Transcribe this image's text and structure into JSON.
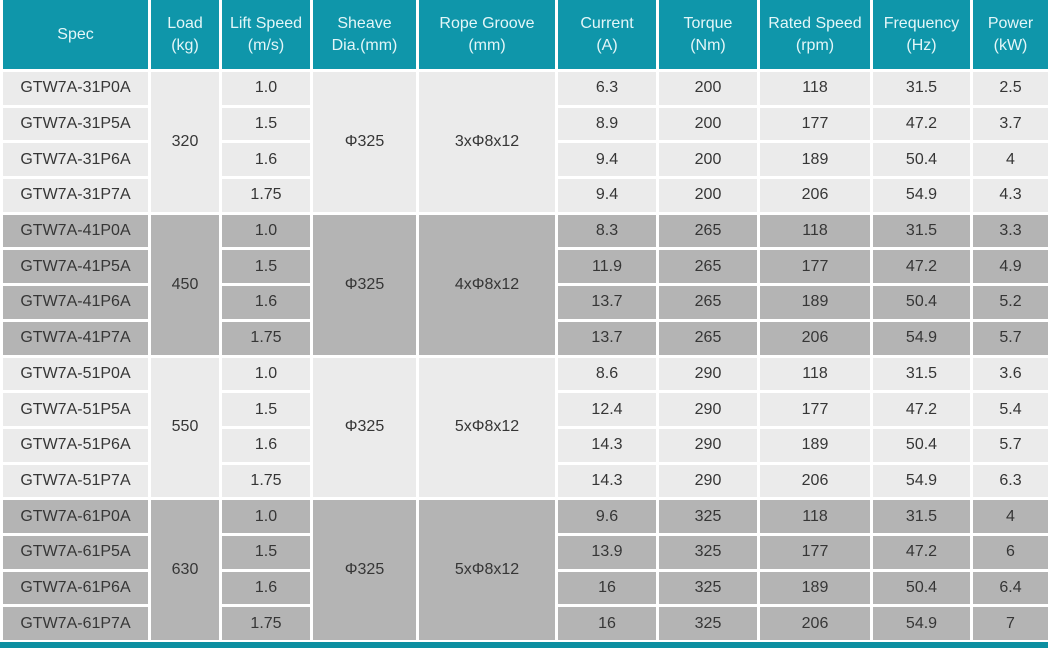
{
  "colors": {
    "header_bg": "#0F96AA",
    "header_text": "#E3F6F8",
    "row_light_bg": "#EBEBEB",
    "row_dark_bg": "#B4B4B4",
    "body_text": "#363636",
    "gap_bg": "#FFFFFF",
    "accent_bar": "#0C8FA1"
  },
  "table": {
    "columns": [
      {
        "id": "spec",
        "label": "Spec",
        "unit": ""
      },
      {
        "id": "load",
        "label": "Load",
        "unit": "(kg)"
      },
      {
        "id": "lift-speed",
        "label": "Lift Speed",
        "unit": "(m/s)"
      },
      {
        "id": "sheave-dia",
        "label": "Sheave",
        "unit": "Dia.(mm)"
      },
      {
        "id": "rope-groove",
        "label": "Rope Groove",
        "unit": "(mm)"
      },
      {
        "id": "current",
        "label": "Current",
        "unit": "(A)"
      },
      {
        "id": "torque",
        "label": "Torque",
        "unit": "(Nm)"
      },
      {
        "id": "rated-speed",
        "label": "Rated Speed",
        "unit": "(rpm)"
      },
      {
        "id": "frequency",
        "label": "Frequency",
        "unit": "(Hz)"
      },
      {
        "id": "power",
        "label": "Power",
        "unit": "(kW)"
      }
    ],
    "groups": [
      {
        "load": "320",
        "sheave_dia": "Φ325",
        "rope_groove": "3xΦ8x12",
        "rows": [
          {
            "spec": "GTW7A-31P0A",
            "lift_speed": "1.0",
            "current": "6.3",
            "torque": "200",
            "rated_speed": "118",
            "frequency": "31.5",
            "power": "2.5"
          },
          {
            "spec": "GTW7A-31P5A",
            "lift_speed": "1.5",
            "current": "8.9",
            "torque": "200",
            "rated_speed": "177",
            "frequency": "47.2",
            "power": "3.7"
          },
          {
            "spec": "GTW7A-31P6A",
            "lift_speed": "1.6",
            "current": "9.4",
            "torque": "200",
            "rated_speed": "189",
            "frequency": "50.4",
            "power": "4"
          },
          {
            "spec": "GTW7A-31P7A",
            "lift_speed": "1.75",
            "current": "9.4",
            "torque": "200",
            "rated_speed": "206",
            "frequency": "54.9",
            "power": "4.3"
          }
        ]
      },
      {
        "load": "450",
        "sheave_dia": "Φ325",
        "rope_groove": "4xΦ8x12",
        "rows": [
          {
            "spec": "GTW7A-41P0A",
            "lift_speed": "1.0",
            "current": "8.3",
            "torque": "265",
            "rated_speed": "118",
            "frequency": "31.5",
            "power": "3.3"
          },
          {
            "spec": "GTW7A-41P5A",
            "lift_speed": "1.5",
            "current": "11.9",
            "torque": "265",
            "rated_speed": "177",
            "frequency": "47.2",
            "power": "4.9"
          },
          {
            "spec": "GTW7A-41P6A",
            "lift_speed": "1.6",
            "current": "13.7",
            "torque": "265",
            "rated_speed": "189",
            "frequency": "50.4",
            "power": "5.2"
          },
          {
            "spec": "GTW7A-41P7A",
            "lift_speed": "1.75",
            "current": "13.7",
            "torque": "265",
            "rated_speed": "206",
            "frequency": "54.9",
            "power": "5.7"
          }
        ]
      },
      {
        "load": "550",
        "sheave_dia": "Φ325",
        "rope_groove": "5xΦ8x12",
        "rows": [
          {
            "spec": "GTW7A-51P0A",
            "lift_speed": "1.0",
            "current": "8.6",
            "torque": "290",
            "rated_speed": "118",
            "frequency": "31.5",
            "power": "3.6"
          },
          {
            "spec": "GTW7A-51P5A",
            "lift_speed": "1.5",
            "current": "12.4",
            "torque": "290",
            "rated_speed": "177",
            "frequency": "47.2",
            "power": "5.4"
          },
          {
            "spec": "GTW7A-51P6A",
            "lift_speed": "1.6",
            "current": "14.3",
            "torque": "290",
            "rated_speed": "189",
            "frequency": "50.4",
            "power": "5.7"
          },
          {
            "spec": "GTW7A-51P7A",
            "lift_speed": "1.75",
            "current": "14.3",
            "torque": "290",
            "rated_speed": "206",
            "frequency": "54.9",
            "power": "6.3"
          }
        ]
      },
      {
        "load": "630",
        "sheave_dia": "Φ325",
        "rope_groove": "5xΦ8x12",
        "rows": [
          {
            "spec": "GTW7A-61P0A",
            "lift_speed": "1.0",
            "current": "9.6",
            "torque": "325",
            "rated_speed": "118",
            "frequency": "31.5",
            "power": "4"
          },
          {
            "spec": "GTW7A-61P5A",
            "lift_speed": "1.5",
            "current": "13.9",
            "torque": "325",
            "rated_speed": "177",
            "frequency": "47.2",
            "power": "6"
          },
          {
            "spec": "GTW7A-61P6A",
            "lift_speed": "1.6",
            "current": "16",
            "torque": "325",
            "rated_speed": "189",
            "frequency": "50.4",
            "power": "6.4"
          },
          {
            "spec": "GTW7A-61P7A",
            "lift_speed": "1.75",
            "current": "16",
            "torque": "325",
            "rated_speed": "206",
            "frequency": "54.9",
            "power": "7"
          }
        ]
      }
    ]
  }
}
